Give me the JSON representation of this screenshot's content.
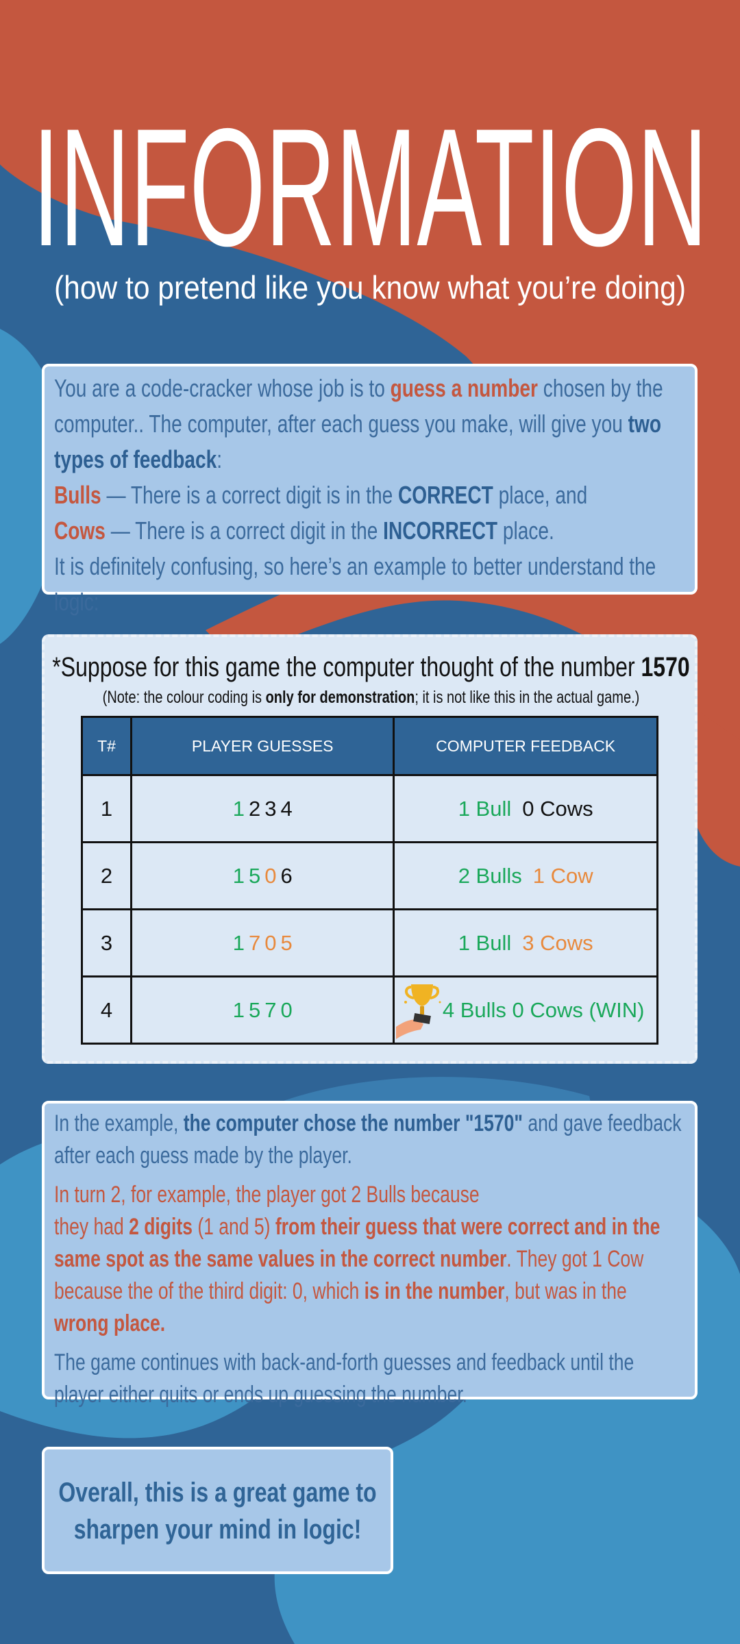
{
  "header": {
    "title": "INFORMATION",
    "subtitle": "(how to pretend like you know what you’re doing)"
  },
  "intro": {
    "paragraphs": [
      [
        "You are a code-cracker whose job is to ",
        "guess a number",
        " chosen by the computer.. The computer, after each guess you make, will give you ",
        "two types of feedback",
        ":"
      ],
      [
        "Bulls",
        " — There is a correct digit is in the ",
        "CORRECT",
        " place, and"
      ],
      [
        "Cows",
        " — There is a correct digit in the ",
        "INCORRECT",
        " place."
      ],
      [
        "It is definitely confusing, so here’s an example to better understand the logic:"
      ]
    ]
  },
  "example": {
    "heading": [
      "*Suppose for this game the computer thought of the number ",
      "1570"
    ],
    "note": [
      "(Note: the colour coding is ",
      "only for demonstration",
      "; it is not like this in the actual game.)"
    ],
    "table": {
      "columns": [
        "T#",
        "PLAYER GUESSES",
        "COMPUTER FEEDBACK"
      ],
      "rows": [
        {
          "turn": "1",
          "guess": [
            {
              "digit": "1",
              "color": "#1aa85a"
            },
            {
              "digit": "2",
              "color": "#111111"
            },
            {
              "digit": "3",
              "color": "#111111"
            },
            {
              "digit": "4",
              "color": "#111111"
            }
          ],
          "feedback": [
            {
              "text": "1 Bull",
              "color": "#1aa85a"
            },
            {
              "text": "0 Cows",
              "color": "#111111"
            }
          ]
        },
        {
          "turn": "2",
          "guess": [
            {
              "digit": "1",
              "color": "#1aa85a"
            },
            {
              "digit": "5",
              "color": "#1aa85a"
            },
            {
              "digit": "0",
              "color": "#e8893c"
            },
            {
              "digit": "6",
              "color": "#111111"
            }
          ],
          "feedback": [
            {
              "text": "2 Bulls",
              "color": "#1aa85a"
            },
            {
              "text": "1 Cow",
              "color": "#e8893c"
            }
          ]
        },
        {
          "turn": "3",
          "guess": [
            {
              "digit": "1",
              "color": "#1aa85a"
            },
            {
              "digit": "7",
              "color": "#e8893c"
            },
            {
              "digit": "0",
              "color": "#e8893c"
            },
            {
              "digit": "5",
              "color": "#e8893c"
            }
          ],
          "feedback": [
            {
              "text": "1 Bull",
              "color": "#1aa85a"
            },
            {
              "text": "3 Cows",
              "color": "#e8893c"
            }
          ]
        },
        {
          "turn": "4",
          "guess": [
            {
              "digit": "1",
              "color": "#1aa85a"
            },
            {
              "digit": "5",
              "color": "#1aa85a"
            },
            {
              "digit": "7",
              "color": "#1aa85a"
            },
            {
              "digit": "0",
              "color": "#1aa85a"
            }
          ],
          "feedback": [
            {
              "text": "4 Bulls 0 Cows (WIN)",
              "color": "#1aa85a"
            }
          ]
        }
      ]
    }
  },
  "explanation": {
    "paragraphs": [
      [
        "In the example, ",
        "the computer chose the number \"1570\"",
        " and gave feedback after each guess made by the player."
      ],
      [
        " In turn 2, for example, the player got 2 Bulls because",
        "they had ",
        "2 digits",
        " (1 and 5) ",
        "from their guess that were correct and in the same spot as the same values in the correct number",
        ". They got 1 Cow because the of the third digit: 0, which ",
        "is in the number",
        ", but was in the ",
        "wrong place."
      ],
      [
        "The game continues with back-and-forth guesses and feedback until the player either quits or ends up guessing the number."
      ]
    ]
  },
  "conclusion": "Overall, this is a great game to sharpen your mind in logic!"
}
